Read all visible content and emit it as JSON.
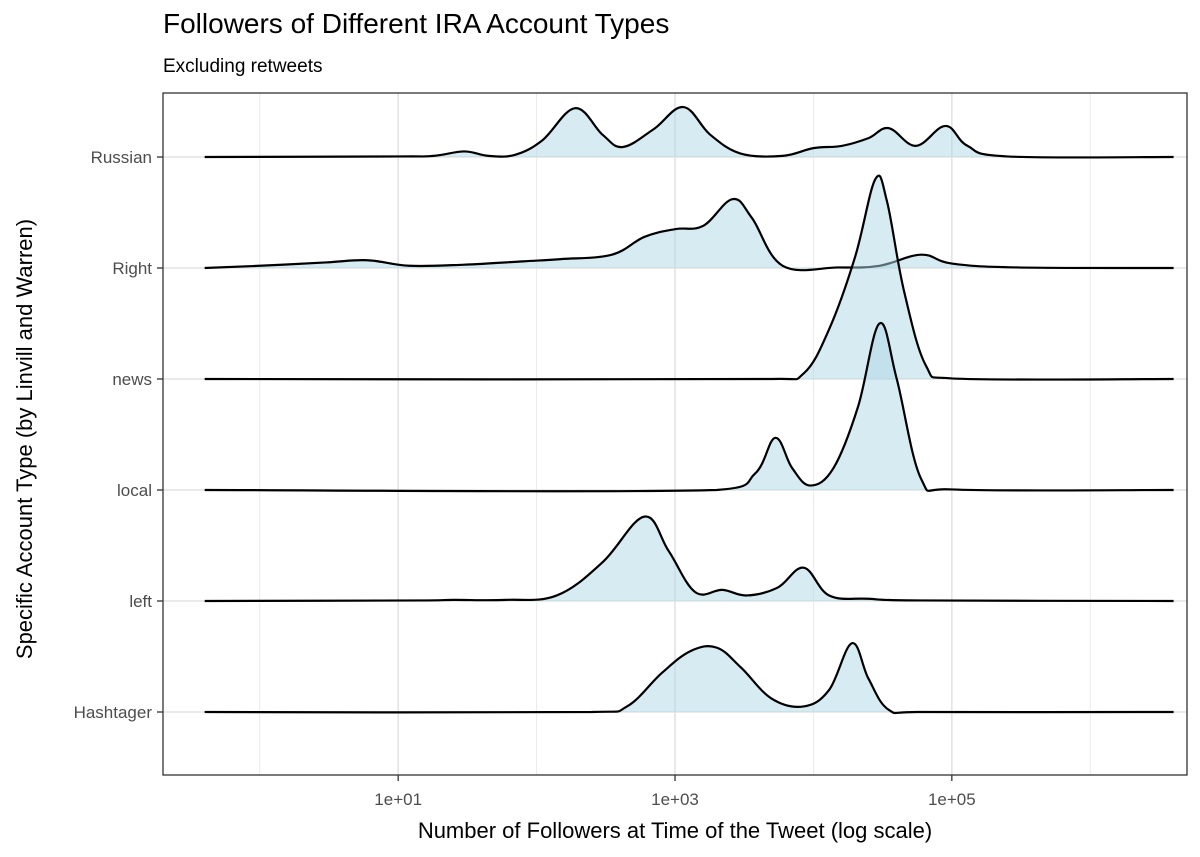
{
  "chart": {
    "title": "Followers of Different IRA Account Types",
    "subtitle": "Excluding retweets"
  },
  "chart_data": {
    "type": "area",
    "subtype": "ridgeline-density",
    "title": "Followers of Different IRA Account Types",
    "subtitle": "Excluding retweets",
    "xlabel": "Number of Followers at Time of the Tweet (log scale)",
    "ylabel": "Specific Account Type (by Linvill and Warren)",
    "x_scale": "log10",
    "xlim": [
      0.2,
      5000000
    ],
    "x_ticks": [
      {
        "value": 10,
        "label": "1e+01"
      },
      {
        "value": 1000,
        "label": "1e+03"
      },
      {
        "value": 100000,
        "label": "1e+05"
      }
    ],
    "x_minor_gridlines": [
      1,
      100,
      10000,
      1000000
    ],
    "grid": true,
    "fill_color": "#add8e6",
    "fill_opacity": 0.5,
    "line_color": "#000000",
    "categories": [
      "Hashtager",
      "left",
      "local",
      "news",
      "Right",
      "Russian"
    ],
    "density_scale": "height relative to one category spacing",
    "series": [
      {
        "name": "Russian",
        "points": [
          [
            0.4,
            0
          ],
          [
            10,
            0.005
          ],
          [
            18,
            0.01
          ],
          [
            30,
            0.05
          ],
          [
            45,
            0.01
          ],
          [
            70,
            0.02
          ],
          [
            110,
            0.15
          ],
          [
            190,
            0.44
          ],
          [
            300,
            0.2
          ],
          [
            420,
            0.09
          ],
          [
            700,
            0.25
          ],
          [
            1150,
            0.45
          ],
          [
            1800,
            0.2
          ],
          [
            3000,
            0.03
          ],
          [
            6000,
            0.01
          ],
          [
            10000,
            0.08
          ],
          [
            16000,
            0.1
          ],
          [
            25000,
            0.17
          ],
          [
            35000,
            0.26
          ],
          [
            55000,
            0.1
          ],
          [
            90000,
            0.28
          ],
          [
            130000,
            0.1
          ],
          [
            250000,
            0.005
          ],
          [
            4000000,
            0
          ]
        ]
      },
      {
        "name": "Right",
        "points": [
          [
            0.4,
            0
          ],
          [
            1,
            0.02
          ],
          [
            3,
            0.05
          ],
          [
            6,
            0.07
          ],
          [
            12,
            0.02
          ],
          [
            30,
            0.03
          ],
          [
            80,
            0.06
          ],
          [
            150,
            0.08
          ],
          [
            350,
            0.12
          ],
          [
            600,
            0.28
          ],
          [
            1000,
            0.35
          ],
          [
            1600,
            0.38
          ],
          [
            2600,
            0.62
          ],
          [
            3600,
            0.45
          ],
          [
            6000,
            0.02
          ],
          [
            15000,
            0.005
          ],
          [
            30000,
            0.02
          ],
          [
            60000,
            0.12
          ],
          [
            100000,
            0.04
          ],
          [
            300000,
            0.005
          ],
          [
            4000000,
            0
          ]
        ]
      },
      {
        "name": "news",
        "points": [
          [
            0.4,
            0
          ],
          [
            5000,
            0
          ],
          [
            8500,
            0.05
          ],
          [
            13000,
            0.45
          ],
          [
            20000,
            1.1
          ],
          [
            28000,
            1.8
          ],
          [
            34000,
            1.6
          ],
          [
            45000,
            0.8
          ],
          [
            65000,
            0.12
          ],
          [
            100000,
            0.005
          ],
          [
            4000000,
            0
          ]
        ]
      },
      {
        "name": "local",
        "points": [
          [
            0.4,
            0
          ],
          [
            2000,
            0
          ],
          [
            3800,
            0.15
          ],
          [
            5300,
            0.47
          ],
          [
            7000,
            0.2
          ],
          [
            9500,
            0.04
          ],
          [
            14000,
            0.2
          ],
          [
            21000,
            0.75
          ],
          [
            30000,
            1.5
          ],
          [
            40000,
            1.0
          ],
          [
            60000,
            0.1
          ],
          [
            100000,
            0.005
          ],
          [
            4000000,
            0
          ]
        ]
      },
      {
        "name": "left",
        "points": [
          [
            0.4,
            0
          ],
          [
            15,
            0.005
          ],
          [
            25,
            0.01
          ],
          [
            60,
            0.01
          ],
          [
            140,
            0.05
          ],
          [
            300,
            0.35
          ],
          [
            600,
            0.76
          ],
          [
            900,
            0.45
          ],
          [
            1400,
            0.08
          ],
          [
            2200,
            0.1
          ],
          [
            3300,
            0.05
          ],
          [
            5500,
            0.12
          ],
          [
            8500,
            0.3
          ],
          [
            13000,
            0.05
          ],
          [
            25000,
            0.02
          ],
          [
            60000,
            0.005
          ],
          [
            4000000,
            0
          ]
        ]
      },
      {
        "name": "Hashtager",
        "points": [
          [
            0.4,
            0
          ],
          [
            250,
            0
          ],
          [
            450,
            0.05
          ],
          [
            800,
            0.35
          ],
          [
            1300,
            0.55
          ],
          [
            2000,
            0.58
          ],
          [
            3000,
            0.4
          ],
          [
            5000,
            0.12
          ],
          [
            8500,
            0.05
          ],
          [
            13000,
            0.2
          ],
          [
            19000,
            0.62
          ],
          [
            25000,
            0.3
          ],
          [
            35000,
            0.02
          ],
          [
            60000,
            0
          ],
          [
            4000000,
            0
          ]
        ]
      }
    ]
  }
}
